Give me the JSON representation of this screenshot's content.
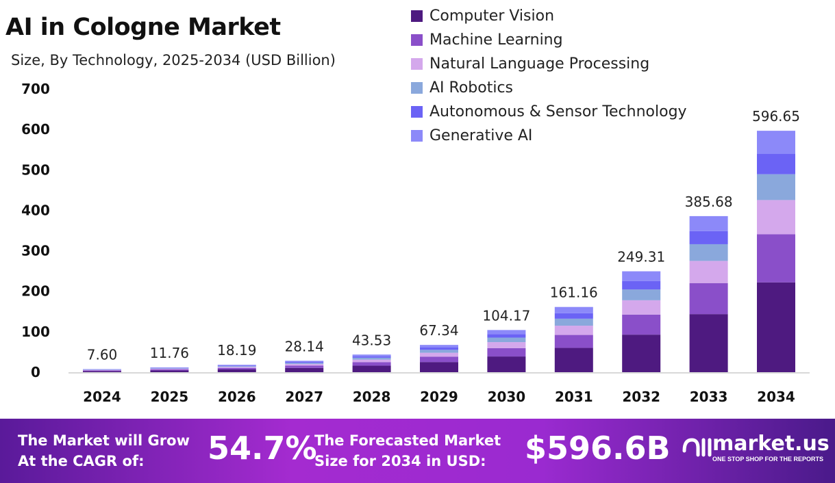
{
  "title": "AI in Cologne Market",
  "subtitle": "Size, By Technology, 2025-2034 (USD Billion)",
  "chart_data": {
    "type": "bar",
    "stacked": true,
    "title": "AI in Cologne Market",
    "subtitle": "Size, By Technology, 2025-2034 (USD Billion)",
    "categories": [
      "2024",
      "2025",
      "2026",
      "2027",
      "2028",
      "2029",
      "2030",
      "2031",
      "2032",
      "2033",
      "2034"
    ],
    "ylim": [
      0,
      700
    ],
    "yticks": [
      0,
      100,
      200,
      300,
      400,
      500,
      600,
      700
    ],
    "grid": false,
    "legend_position": "top-right",
    "totals": [
      7.6,
      11.76,
      18.19,
      28.14,
      43.53,
      67.34,
      104.17,
      161.16,
      249.31,
      385.68,
      596.65
    ],
    "total_labels": [
      "7.60",
      "11.76",
      "18.19",
      "28.14",
      "43.53",
      "67.34",
      "104.17",
      "161.16",
      "249.31",
      "385.68",
      "596.65"
    ],
    "series": [
      {
        "name": "Computer Vision",
        "color": "#4e1a80",
        "values": [
          2.83,
          4.37,
          6.77,
          10.47,
          16.19,
          25.05,
          38.75,
          59.95,
          92.74,
          143.47,
          221.95
        ]
      },
      {
        "name": "Machine Learning",
        "color": "#8a4fc9",
        "values": [
          1.51,
          2.34,
          3.62,
          5.6,
          8.66,
          13.4,
          20.73,
          32.07,
          49.61,
          76.75,
          118.73
        ]
      },
      {
        "name": "Natural Language Processing",
        "color": "#d4a8ec",
        "values": [
          1.08,
          1.67,
          2.58,
          4.0,
          6.18,
          9.56,
          14.79,
          22.88,
          35.4,
          54.77,
          84.72
        ]
      },
      {
        "name": "AI Robotics",
        "color": "#8aa8dc",
        "values": [
          0.81,
          1.26,
          1.95,
          3.01,
          4.66,
          7.21,
          11.15,
          17.24,
          26.68,
          41.27,
          63.84
        ]
      },
      {
        "name": "Autonomous & Sensor Technology",
        "color": "#6b63f5",
        "values": [
          0.64,
          0.99,
          1.53,
          2.36,
          3.66,
          5.66,
          8.75,
          13.54,
          20.94,
          32.4,
          50.12
        ]
      },
      {
        "name": "Generative AI",
        "color": "#8c89f9",
        "values": [
          0.73,
          1.13,
          1.74,
          2.7,
          4.18,
          6.46,
          10.0,
          15.47,
          23.93,
          37.03,
          57.28
        ]
      }
    ]
  },
  "footer": {
    "cagr_text_1": "The Market will Grow",
    "cagr_text_2": "At the CAGR of:",
    "cagr_value": "54.7%",
    "forecast_text_1": "The Forecasted Market",
    "forecast_text_2": "Size for 2034 in USD:",
    "forecast_value": "$596.6B",
    "logo_name": "market.us",
    "logo_tagline": "ONE STOP SHOP FOR THE REPORTS"
  }
}
